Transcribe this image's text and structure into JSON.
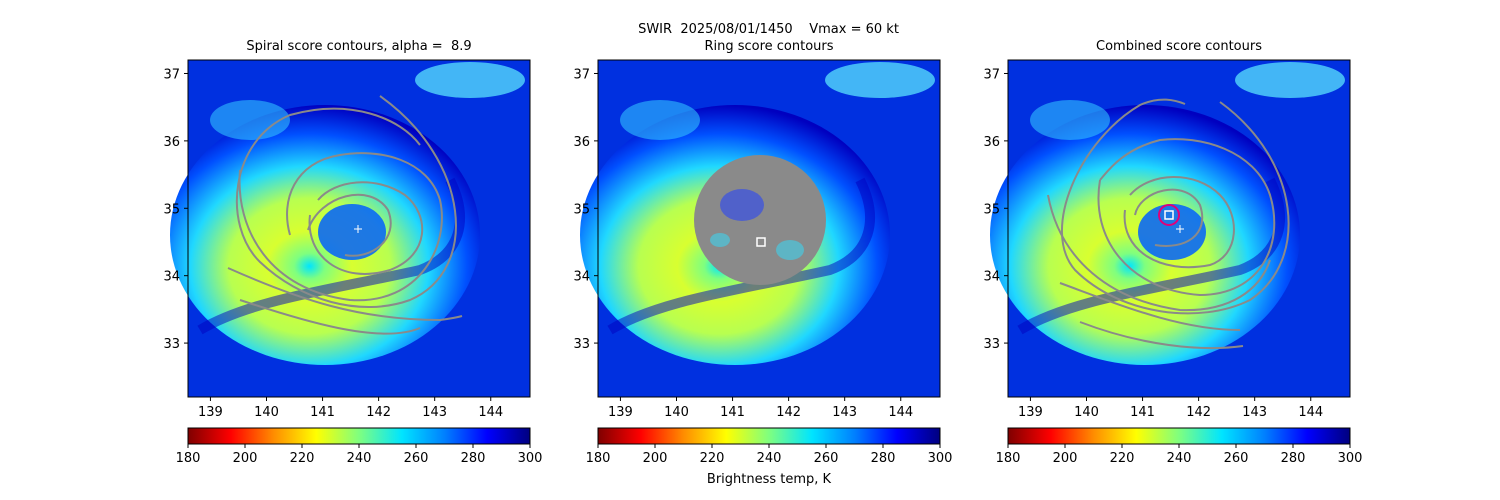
{
  "figure": {
    "suptitle": "SWIR  2025/08/01/1450    Vmax = 60 kt",
    "colorbar_label": "Brightness temp, K"
  },
  "chart_data": [
    {
      "type": "heatmap",
      "title": "Spiral score contours, alpha =  8.9",
      "x_ticks": [
        "139",
        "140",
        "141",
        "142",
        "143",
        "144"
      ],
      "y_ticks": [
        "33",
        "34",
        "35",
        "36",
        "37"
      ],
      "xlim": [
        138.6,
        144.7
      ],
      "ylim": [
        32.2,
        37.2
      ],
      "storm_marker": {
        "lon": 141.6,
        "lat": 34.7,
        "symbol": "+"
      },
      "overlay": "spiral contours"
    },
    {
      "type": "heatmap",
      "title": "Ring score contours",
      "x_ticks": [
        "139",
        "140",
        "141",
        "142",
        "143",
        "144"
      ],
      "y_ticks": [
        "33",
        "34",
        "35",
        "36",
        "37"
      ],
      "xlim": [
        138.6,
        144.7
      ],
      "ylim": [
        32.2,
        37.2
      ],
      "best_point": {
        "lon": 141.5,
        "lat": 34.5,
        "symbol": "square"
      },
      "overlay": "ring score mask centered near 141.0E 35.0N"
    },
    {
      "type": "heatmap",
      "title": "Combined score contours",
      "x_ticks": [
        "139",
        "140",
        "141",
        "142",
        "143",
        "144"
      ],
      "y_ticks": [
        "33",
        "34",
        "35",
        "36",
        "37"
      ],
      "xlim": [
        138.6,
        144.7
      ],
      "ylim": [
        32.2,
        37.2
      ],
      "storm_marker": {
        "lon": 141.6,
        "lat": 34.7,
        "symbol": "+"
      },
      "best_point": {
        "lon": 141.4,
        "lat": 34.9,
        "symbol": "square",
        "circle_color": "#e0007a"
      },
      "overlay": "combined contours"
    }
  ],
  "colorbar": {
    "ticks": [
      "180",
      "200",
      "220",
      "240",
      "260",
      "280",
      "300"
    ],
    "range": [
      180,
      300
    ],
    "colormap": "jet_r",
    "colors": [
      "#7f0000",
      "#ff0000",
      "#ff8c00",
      "#ffff00",
      "#7fff7f",
      "#00e5ff",
      "#0080ff",
      "#0000ff",
      "#00007f"
    ]
  }
}
